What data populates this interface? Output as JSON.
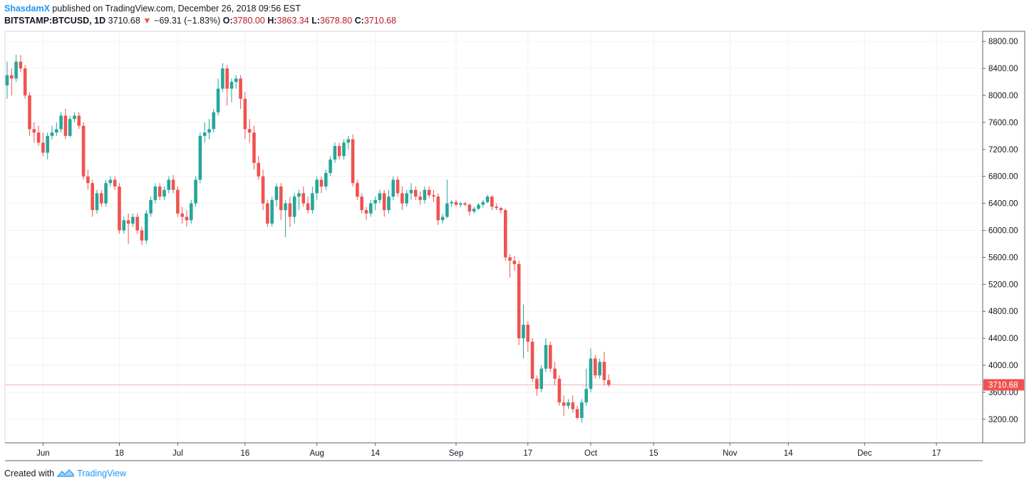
{
  "header": {
    "author": "ShasdamX",
    "published_text": "published on TradingView.com, December 26, 2018 09:56 EST",
    "symbol": "BITSTAMP:BTCUSD, 1D",
    "last": "3710.68",
    "change": "−69.31 (−1.83%)",
    "open_label": "O:",
    "open": "3780.00",
    "high_label": "H:",
    "high": "3863.34",
    "low_label": "L:",
    "low": "3678.80",
    "close_label": "C:",
    "close": "3710.68"
  },
  "footer": {
    "created_with": "Created with",
    "brand": "TradingView"
  },
  "colors": {
    "up": "#26a69a",
    "down": "#ef5350",
    "grid": "#f2f2f2",
    "axis": "#5d606b",
    "price_line": "#f7b8b7",
    "price_badge": "#ef5350"
  },
  "chart_data": {
    "type": "candlestick",
    "y_axis": {
      "min": 2850,
      "max": 8950,
      "ticks": [
        3200,
        3600,
        4000,
        4400,
        4800,
        5200,
        5600,
        6000,
        6400,
        6800,
        7200,
        7600,
        8000,
        8400,
        8800
      ],
      "position": "right"
    },
    "x_axis": {
      "labels": [
        {
          "label": "Jun",
          "index": 8
        },
        {
          "label": "18",
          "index": 25
        },
        {
          "label": "Jul",
          "index": 38
        },
        {
          "label": "16",
          "index": 53
        },
        {
          "label": "Aug",
          "index": 69
        },
        {
          "label": "14",
          "index": 82
        },
        {
          "label": "Sep",
          "index": 100
        },
        {
          "label": "17",
          "index": 116
        },
        {
          "label": "Oct",
          "index": 130
        },
        {
          "label": "15",
          "index": 144
        },
        {
          "label": "Nov",
          "index": 161
        },
        {
          "label": "14",
          "index": 174
        },
        {
          "label": "Dec",
          "index": 191
        },
        {
          "label": "17",
          "index": 207
        }
      ]
    },
    "last_price": 3710.68,
    "last_price_label": "3710.68",
    "candles": [
      [
        8150,
        8500,
        7950,
        8300
      ],
      [
        8300,
        8400,
        8000,
        8250
      ],
      [
        8250,
        8600,
        8200,
        8500
      ],
      [
        8500,
        8600,
        8350,
        8400
      ],
      [
        8400,
        8450,
        7950,
        8000
      ],
      [
        8000,
        8050,
        7400,
        7500
      ],
      [
        7500,
        7600,
        7300,
        7450
      ],
      [
        7450,
        7550,
        7250,
        7300
      ],
      [
        7300,
        7450,
        7100,
        7150
      ],
      [
        7150,
        7450,
        7050,
        7400
      ],
      [
        7400,
        7550,
        7350,
        7450
      ],
      [
        7450,
        7600,
        7400,
        7500
      ],
      [
        7500,
        7750,
        7450,
        7700
      ],
      [
        7700,
        7800,
        7350,
        7400
      ],
      [
        7400,
        7700,
        7380,
        7650
      ],
      [
        7650,
        7750,
        7600,
        7700
      ],
      [
        7700,
        7750,
        7500,
        7550
      ],
      [
        7550,
        7600,
        6750,
        6800
      ],
      [
        6800,
        6900,
        6600,
        6700
      ],
      [
        6700,
        6750,
        6200,
        6300
      ],
      [
        6300,
        6600,
        6250,
        6550
      ],
      [
        6550,
        6600,
        6350,
        6400
      ],
      [
        6400,
        6750,
        6350,
        6700
      ],
      [
        6700,
        6800,
        6650,
        6750
      ],
      [
        6750,
        6800,
        6600,
        6650
      ],
      [
        6650,
        6700,
        5950,
        6000
      ],
      [
        6000,
        6200,
        5950,
        6150
      ],
      [
        6150,
        6250,
        5800,
        6100
      ],
      [
        6100,
        6250,
        6050,
        6200
      ],
      [
        6200,
        6250,
        5950,
        6000
      ],
      [
        6000,
        6050,
        5780,
        5850
      ],
      [
        5850,
        6300,
        5800,
        6250
      ],
      [
        6250,
        6500,
        6200,
        6450
      ],
      [
        6450,
        6700,
        6400,
        6650
      ],
      [
        6650,
        6700,
        6450,
        6500
      ],
      [
        6500,
        6650,
        6450,
        6600
      ],
      [
        6600,
        6800,
        6550,
        6750
      ],
      [
        6750,
        6820,
        6550,
        6600
      ],
      [
        6600,
        6650,
        6200,
        6250
      ],
      [
        6250,
        6350,
        6100,
        6200
      ],
      [
        6200,
        6300,
        6050,
        6150
      ],
      [
        6150,
        6450,
        6100,
        6400
      ],
      [
        6400,
        6800,
        6350,
        6750
      ],
      [
        6750,
        7450,
        6700,
        7400
      ],
      [
        7400,
        7600,
        7300,
        7450
      ],
      [
        7450,
        7650,
        7350,
        7500
      ],
      [
        7500,
        7800,
        7450,
        7750
      ],
      [
        7750,
        8250,
        7700,
        8100
      ],
      [
        8100,
        8480,
        8050,
        8400
      ],
      [
        8400,
        8450,
        7850,
        8100
      ],
      [
        8100,
        8250,
        7900,
        8200
      ],
      [
        8200,
        8300,
        8100,
        8250
      ],
      [
        8250,
        8300,
        7800,
        7950
      ],
      [
        7950,
        8050,
        7350,
        7500
      ],
      [
        7500,
        7650,
        7300,
        7450
      ],
      [
        7450,
        7550,
        6900,
        7000
      ],
      [
        7000,
        7100,
        6750,
        6800
      ],
      [
        6800,
        6900,
        6300,
        6400
      ],
      [
        6400,
        6450,
        6050,
        6100
      ],
      [
        6100,
        6500,
        6050,
        6450
      ],
      [
        6450,
        6700,
        6350,
        6650
      ],
      [
        6650,
        6700,
        6150,
        6300
      ],
      [
        6300,
        6450,
        5900,
        6400
      ],
      [
        6400,
        6500,
        6050,
        6200
      ],
      [
        6200,
        6550,
        6100,
        6500
      ],
      [
        6500,
        6600,
        6300,
        6550
      ],
      [
        6550,
        6650,
        6350,
        6400
      ],
      [
        6400,
        6500,
        6250,
        6300
      ],
      [
        6300,
        6650,
        6250,
        6550
      ],
      [
        6550,
        6800,
        6450,
        6750
      ],
      [
        6750,
        6800,
        6550,
        6650
      ],
      [
        6650,
        6900,
        6600,
        6850
      ],
      [
        6850,
        7100,
        6800,
        7050
      ],
      [
        7050,
        7300,
        7000,
        7250
      ],
      [
        7250,
        7300,
        7050,
        7100
      ],
      [
        7100,
        7350,
        7050,
        7300
      ],
      [
        7300,
        7400,
        7200,
        7350
      ],
      [
        7350,
        7420,
        6650,
        6700
      ],
      [
        6700,
        6750,
        6450,
        6500
      ],
      [
        6500,
        6550,
        6250,
        6300
      ],
      [
        6300,
        6350,
        6150,
        6250
      ],
      [
        6250,
        6450,
        6200,
        6400
      ],
      [
        6400,
        6500,
        6300,
        6450
      ],
      [
        6450,
        6600,
        6400,
        6550
      ],
      [
        6550,
        6600,
        6200,
        6300
      ],
      [
        6300,
        6600,
        6250,
        6500
      ],
      [
        6500,
        6800,
        6450,
        6750
      ],
      [
        6750,
        6800,
        6500,
        6550
      ],
      [
        6550,
        6650,
        6300,
        6400
      ],
      [
        6400,
        6600,
        6350,
        6550
      ],
      [
        6550,
        6700,
        6450,
        6600
      ],
      [
        6600,
        6650,
        6450,
        6500
      ],
      [
        6500,
        6580,
        6380,
        6450
      ],
      [
        6450,
        6650,
        6400,
        6600
      ],
      [
        6600,
        6650,
        6480,
        6520
      ],
      [
        6520,
        6600,
        6420,
        6500
      ],
      [
        6500,
        6550,
        6080,
        6150
      ],
      [
        6150,
        6250,
        6100,
        6200
      ],
      [
        6200,
        6750,
        6180,
        6400
      ],
      [
        6400,
        6450,
        6350,
        6420
      ],
      [
        6420,
        6450,
        6350,
        6380
      ],
      [
        6380,
        6420,
        6340,
        6400
      ],
      [
        6400,
        6420,
        6360,
        6380
      ],
      [
        6380,
        6400,
        6220,
        6280
      ],
      [
        6280,
        6350,
        6250,
        6320
      ],
      [
        6320,
        6400,
        6300,
        6380
      ],
      [
        6380,
        6450,
        6340,
        6420
      ],
      [
        6420,
        6530,
        6400,
        6500
      ],
      [
        6500,
        6520,
        6300,
        6350
      ],
      [
        6350,
        6400,
        6300,
        6330
      ],
      [
        6330,
        6350,
        6250,
        6300
      ],
      [
        6300,
        6320,
        5550,
        5600
      ],
      [
        5600,
        5650,
        5300,
        5550
      ],
      [
        5550,
        5620,
        5400,
        5500
      ],
      [
        5500,
        5550,
        4300,
        4400
      ],
      [
        4400,
        4900,
        4100,
        4600
      ],
      [
        4600,
        4650,
        4200,
        4350
      ],
      [
        4350,
        4400,
        3750,
        3800
      ],
      [
        3800,
        3850,
        3550,
        3650
      ],
      [
        3650,
        4000,
        3600,
        3950
      ],
      [
        3950,
        4400,
        3900,
        4300
      ],
      [
        4300,
        4350,
        3900,
        3950
      ],
      [
        3950,
        4050,
        3700,
        3800
      ],
      [
        3800,
        3850,
        3400,
        3450
      ],
      [
        3450,
        3550,
        3250,
        3400
      ],
      [
        3400,
        3500,
        3350,
        3450
      ],
      [
        3450,
        3550,
        3300,
        3350
      ],
      [
        3350,
        3400,
        3200,
        3220
      ],
      [
        3220,
        3500,
        3150,
        3450
      ],
      [
        3450,
        3950,
        3400,
        3650
      ],
      [
        3650,
        4250,
        3600,
        4100
      ],
      [
        4100,
        4150,
        3800,
        3850
      ],
      [
        3850,
        4100,
        3800,
        4050
      ],
      [
        4050,
        4200,
        3700,
        3780
      ],
      [
        3780,
        3863.34,
        3678.8,
        3710.68
      ]
    ]
  }
}
